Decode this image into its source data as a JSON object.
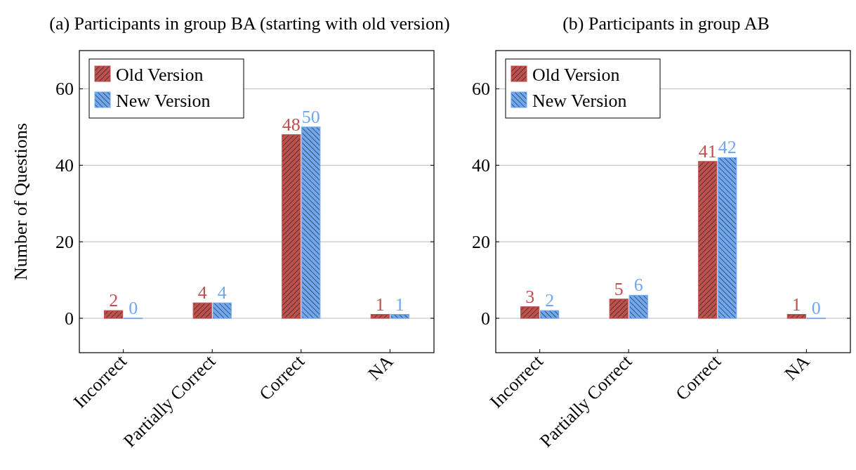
{
  "chart_data": [
    {
      "type": "bar",
      "title": "(a) Participants in group BA (starting with old version)",
      "ylabel": "Number of Questions",
      "categories": [
        "Incorrect",
        "Partially Correct",
        "Correct",
        "NA"
      ],
      "series": [
        {
          "name": "Old Version",
          "color": "#c0504d",
          "values": [
            2,
            4,
            48,
            1
          ]
        },
        {
          "name": "New Version",
          "color": "#6fa8f0",
          "values": [
            0,
            4,
            50,
            1
          ]
        }
      ],
      "ylim": [
        -9,
        70
      ],
      "yticks": [
        0,
        20,
        40,
        60
      ],
      "grid": "y",
      "legend": "top left",
      "data_labels": true
    },
    {
      "type": "bar",
      "title": "(b) Participants in group AB",
      "categories": [
        "Incorrect",
        "Partially Correct",
        "Correct",
        "NA"
      ],
      "series": [
        {
          "name": "Old Version",
          "color": "#c0504d",
          "values": [
            3,
            5,
            41,
            1
          ]
        },
        {
          "name": "New Version",
          "color": "#6fa8f0",
          "values": [
            2,
            6,
            42,
            0
          ]
        }
      ],
      "ylim": [
        -9,
        70
      ],
      "yticks": [
        0,
        20,
        40,
        60
      ],
      "grid": "y",
      "legend": "top left",
      "data_labels": true
    }
  ]
}
